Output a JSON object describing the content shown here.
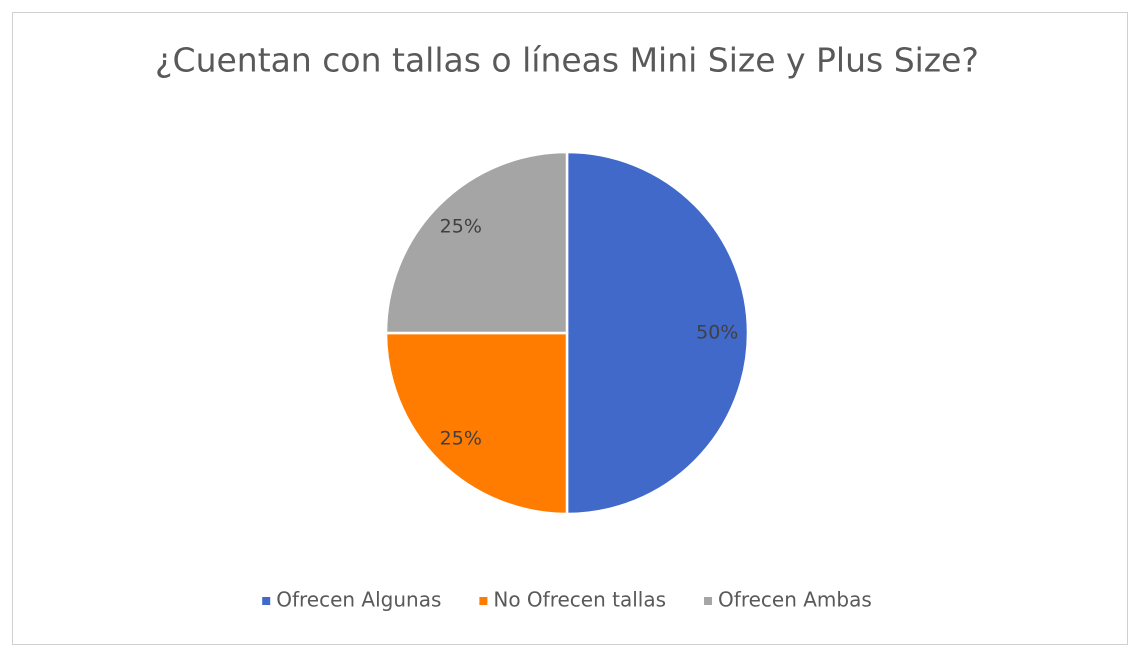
{
  "chart_data": {
    "type": "pie",
    "title": "¿Cuentan con tallas o líneas Mini Size y Plus Size?",
    "categories": [
      "Ofrecen Algunas",
      "No Ofrecen tallas",
      "Ofrecen Ambas"
    ],
    "values": [
      50,
      25,
      25
    ],
    "value_labels": [
      "50%",
      "25%",
      "25%"
    ],
    "colors": [
      "#4169c9",
      "#ff7c00",
      "#a5a5a5"
    ],
    "legend": "bottom"
  }
}
